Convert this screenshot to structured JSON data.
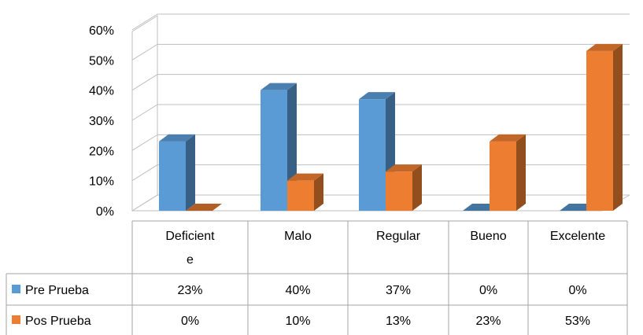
{
  "chart_data": {
    "type": "bar",
    "categories": [
      "Deficiente",
      "Malo",
      "Regular",
      "Bueno",
      "Excelente"
    ],
    "category_lines": [
      [
        "Deficient",
        "e"
      ],
      [
        "Malo"
      ],
      [
        "Regular"
      ],
      [
        "Bueno"
      ],
      [
        "Excelente"
      ]
    ],
    "series": [
      {
        "name": "Pre Prueba",
        "values": [
          23,
          40,
          37,
          0,
          0
        ],
        "labels": [
          "23%",
          "40%",
          "37%",
          "0%",
          "0%"
        ],
        "color": "#5b9bd5"
      },
      {
        "name": "Pos Prueba",
        "values": [
          0,
          10,
          13,
          23,
          53
        ],
        "labels": [
          "0%",
          "10%",
          "13%",
          "23%",
          "53%"
        ],
        "color": "#ed7d31"
      }
    ],
    "y_ticks": [
      "0%",
      "10%",
      "20%",
      "30%",
      "40%",
      "50%",
      "60%"
    ],
    "ylim": [
      0,
      60
    ],
    "grid": true,
    "three_d": true,
    "legend": "data-table"
  }
}
